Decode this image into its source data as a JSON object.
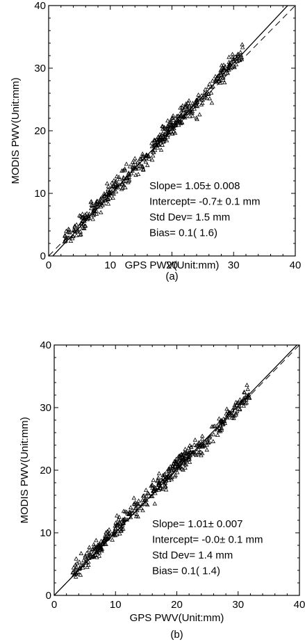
{
  "chart_data": [
    {
      "type": "scatter",
      "caption": "(a)",
      "xlabel": "GPS PWV(Unit:mm)",
      "ylabel": "MODIS PWV(Unit:mm)",
      "xlim": [
        0,
        40
      ],
      "ylim": [
        0,
        40
      ],
      "xticks": [
        "0",
        "10",
        "20",
        "30",
        "40"
      ],
      "yticks": [
        "0",
        "10",
        "20",
        "30",
        "40"
      ],
      "stats": [
        "Slope= 1.05± 0.008",
        "Intercept= -0.7± 0.1 mm",
        "Std Dev= 1.5 mm",
        "Bias= 0.1( 1.6)"
      ],
      "fit": {
        "slope": 1.05,
        "intercept": -0.7
      },
      "reference_line": {
        "slope": 1.0,
        "intercept": 0.0,
        "style": "dashed"
      },
      "marker": "triangle",
      "grid": false,
      "point_segments": [
        {
          "x": [
            2.5,
            5
          ],
          "yoff": 0.5,
          "n": 28,
          "spread": 1.6
        },
        {
          "x": [
            5,
            10
          ],
          "yoff": 0.4,
          "n": 95,
          "spread": 1.7
        },
        {
          "x": [
            10,
            14
          ],
          "yoff": 0.2,
          "n": 60,
          "spread": 1.6
        },
        {
          "x": [
            14,
            17
          ],
          "yoff": -0.2,
          "n": 35,
          "spread": 1.8
        },
        {
          "x": [
            17,
            23
          ],
          "yoff": 0.6,
          "n": 140,
          "spread": 1.6
        },
        {
          "x": [
            23,
            27
          ],
          "yoff": -0.6,
          "n": 45,
          "spread": 1.8
        },
        {
          "x": [
            27,
            31.5
          ],
          "yoff": 0.3,
          "n": 70,
          "spread": 1.5
        }
      ]
    },
    {
      "type": "scatter",
      "caption": "(b)",
      "xlabel": "GPS PWV(Unit:mm)",
      "ylabel": "MODIS PWV(Unit:mm)",
      "xlim": [
        0,
        40
      ],
      "ylim": [
        0,
        40
      ],
      "xticks": [
        "0",
        "10",
        "20",
        "30",
        "40"
      ],
      "yticks": [
        "0",
        "10",
        "20",
        "30",
        "40"
      ],
      "stats": [
        "Slope= 1.01± 0.007",
        "Intercept= -0.0± 0.1 mm",
        "Std Dev= 1.4 mm",
        "Bias= 0.1( 1.4)"
      ],
      "fit": {
        "slope": 1.01,
        "intercept": 0.0
      },
      "reference_line": {
        "slope": 1.0,
        "intercept": 0.0,
        "style": "dashed"
      },
      "marker": "triangle",
      "grid": false,
      "point_segments": [
        {
          "x": [
            3,
            5
          ],
          "yoff": 0.5,
          "n": 28,
          "spread": 1.5
        },
        {
          "x": [
            5,
            10
          ],
          "yoff": 0.6,
          "n": 95,
          "spread": 1.5
        },
        {
          "x": [
            10,
            14
          ],
          "yoff": 0.5,
          "n": 60,
          "spread": 1.5
        },
        {
          "x": [
            14,
            17
          ],
          "yoff": 0.2,
          "n": 35,
          "spread": 1.7
        },
        {
          "x": [
            17,
            23
          ],
          "yoff": 0.4,
          "n": 140,
          "spread": 1.5
        },
        {
          "x": [
            23,
            27
          ],
          "yoff": -0.3,
          "n": 45,
          "spread": 1.7
        },
        {
          "x": [
            27,
            32
          ],
          "yoff": 0.0,
          "n": 70,
          "spread": 1.5
        }
      ]
    }
  ]
}
